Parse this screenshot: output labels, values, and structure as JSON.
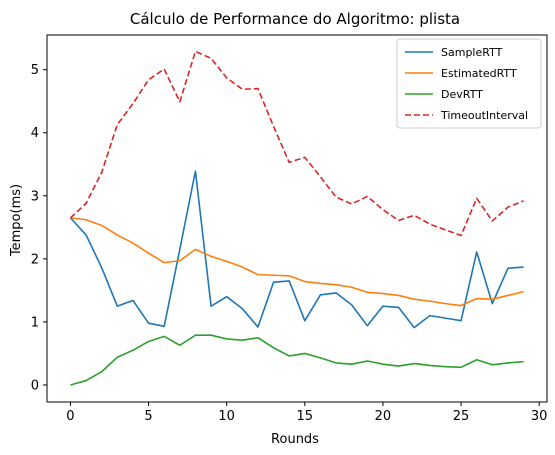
{
  "chart_data": {
    "type": "line",
    "title": "Cálculo de Performance do Algoritmo: plista",
    "xlabel": "Rounds",
    "ylabel": "Tempo(ms)",
    "xlim": [
      -1.5,
      30.5
    ],
    "ylim": [
      -0.27,
      5.55
    ],
    "xticks": [
      0,
      5,
      10,
      15,
      20,
      25,
      30
    ],
    "yticks": [
      0,
      1,
      2,
      3,
      4,
      5
    ],
    "grid": false,
    "legend_position": "top-right",
    "x": [
      0,
      1,
      2,
      3,
      4,
      5,
      6,
      7,
      8,
      9,
      10,
      11,
      12,
      13,
      14,
      15,
      16,
      17,
      18,
      19,
      20,
      21,
      22,
      23,
      24,
      25,
      26,
      27,
      28,
      29
    ],
    "series": [
      {
        "name": "SampleRTT",
        "color": "#1f77b4",
        "dash": "solid",
        "values": [
          2.65,
          2.38,
          1.86,
          1.25,
          1.34,
          0.98,
          0.93,
          2.15,
          3.39,
          1.25,
          1.4,
          1.21,
          0.92,
          1.63,
          1.65,
          1.02,
          1.43,
          1.46,
          1.27,
          0.94,
          1.25,
          1.23,
          0.91,
          1.1,
          1.06,
          1.02,
          2.11,
          1.29,
          1.85,
          1.87
        ]
      },
      {
        "name": "EstimatedRTT",
        "color": "#ff7f0e",
        "dash": "solid",
        "values": [
          2.65,
          2.62,
          2.53,
          2.38,
          2.25,
          2.09,
          1.94,
          1.97,
          2.15,
          2.04,
          1.96,
          1.87,
          1.75,
          1.74,
          1.73,
          1.64,
          1.61,
          1.59,
          1.55,
          1.47,
          1.45,
          1.42,
          1.36,
          1.33,
          1.29,
          1.26,
          1.37,
          1.36,
          1.42,
          1.48
        ]
      },
      {
        "name": "DevRTT",
        "color": "#2ca02c",
        "dash": "solid",
        "values": [
          0.0,
          0.07,
          0.21,
          0.44,
          0.55,
          0.69,
          0.77,
          0.63,
          0.79,
          0.79,
          0.73,
          0.71,
          0.75,
          0.59,
          0.46,
          0.5,
          0.43,
          0.35,
          0.33,
          0.38,
          0.33,
          0.3,
          0.34,
          0.31,
          0.29,
          0.28,
          0.4,
          0.32,
          0.35,
          0.37
        ]
      },
      {
        "name": "TimeoutInterval",
        "color": "#d62728",
        "dash": "dashed",
        "values": [
          2.65,
          2.88,
          3.37,
          4.13,
          4.46,
          4.84,
          5.01,
          4.49,
          5.29,
          5.18,
          4.87,
          4.69,
          4.7,
          4.1,
          3.53,
          3.61,
          3.3,
          2.98,
          2.87,
          2.99,
          2.78,
          2.61,
          2.69,
          2.55,
          2.46,
          2.37,
          2.96,
          2.6,
          2.82,
          2.92
        ]
      }
    ]
  }
}
